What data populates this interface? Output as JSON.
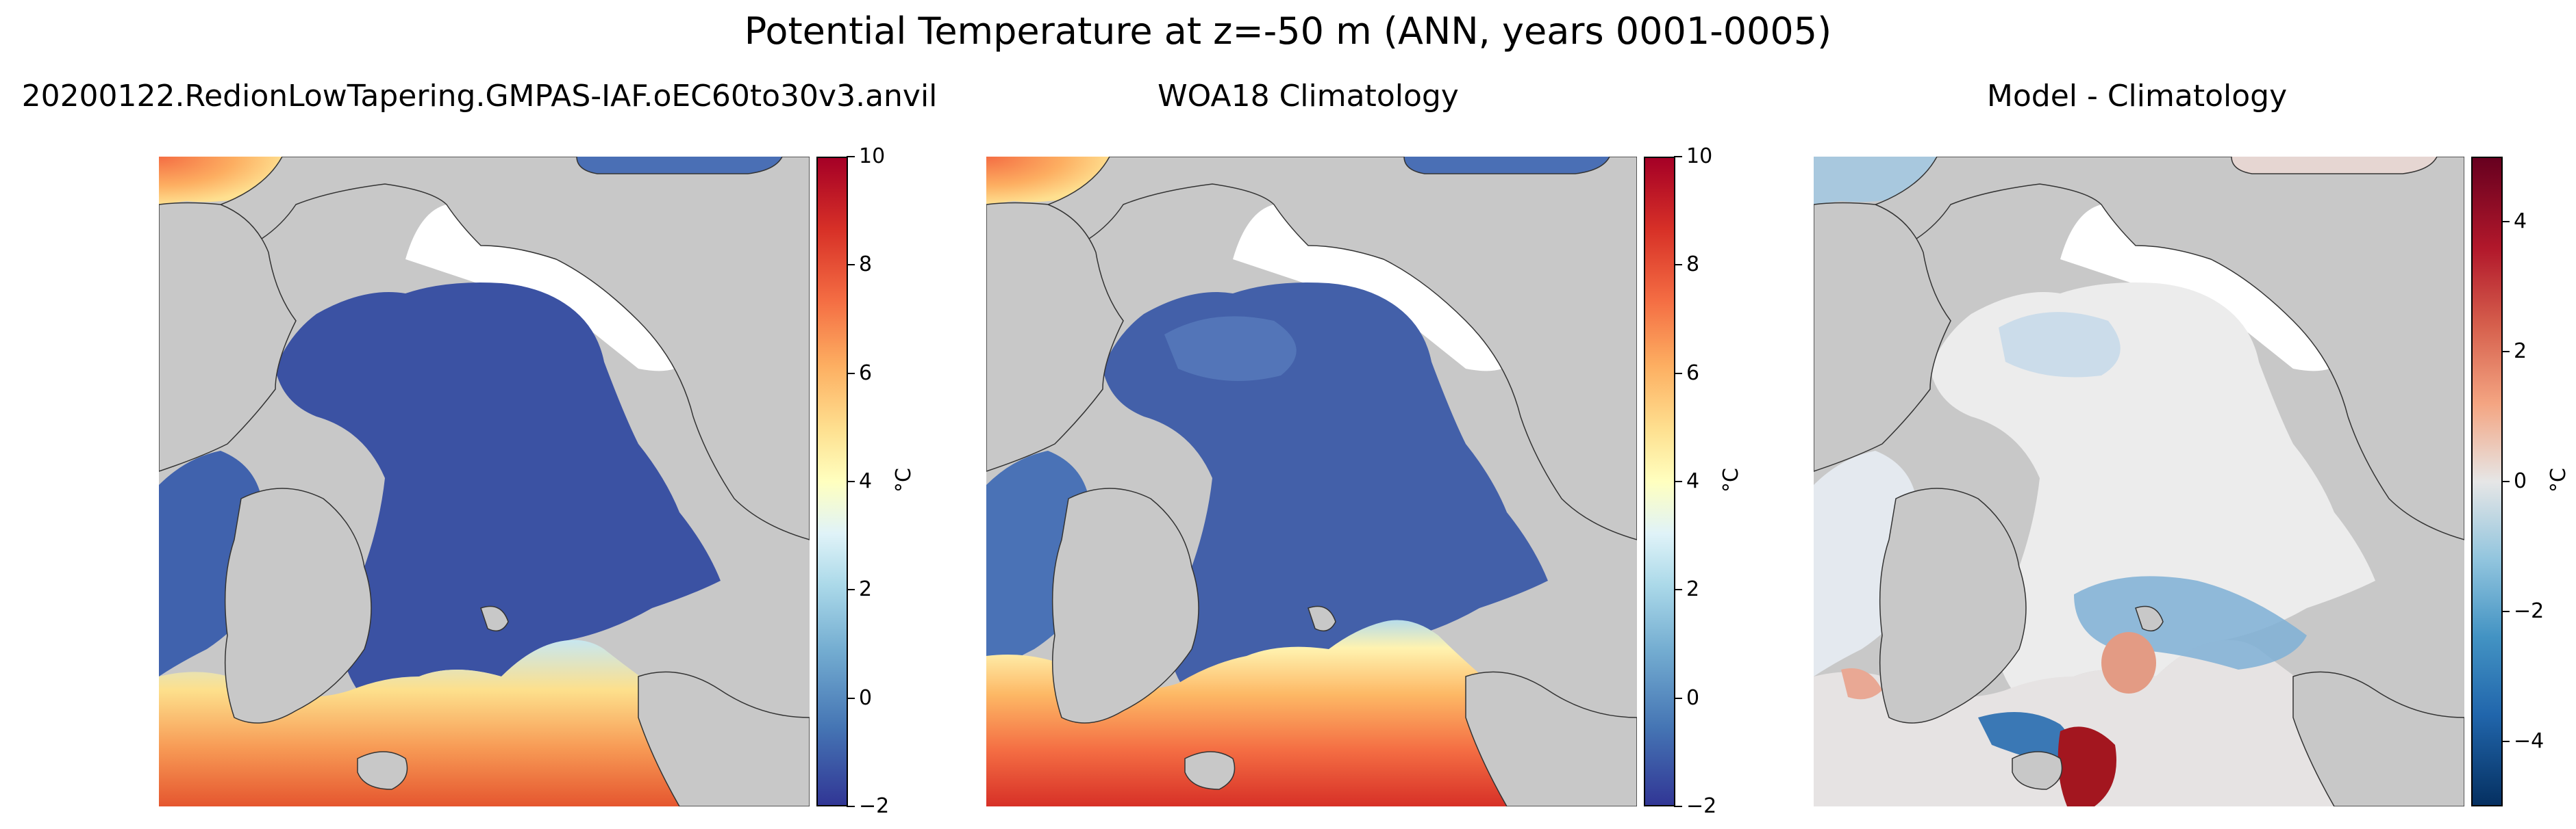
{
  "suptitle": "Potential Temperature at z=-50 m (ANN, years 0001-0005)",
  "panels": [
    {
      "title": "20200122.RedionLowTapering.GMPAS-IAF.oEC60to30v3.anvil",
      "colormap": "RdYlBu_r",
      "vmin": -2,
      "vmax": 10,
      "ticks": [
        "−2",
        "0",
        "2",
        "4",
        "6",
        "8",
        "10"
      ],
      "unit": "°C"
    },
    {
      "title": "WOA18 Climatology",
      "colormap": "RdYlBu_r",
      "vmin": -2,
      "vmax": 10,
      "ticks": [
        "−2",
        "0",
        "2",
        "4",
        "6",
        "8",
        "10"
      ],
      "unit": "°C"
    },
    {
      "title": "Model - Climatology",
      "colormap": "RdBu_r",
      "vmin": -5,
      "vmax": 5,
      "ticks": [
        "−4",
        "−2",
        "0",
        "2",
        "4"
      ],
      "unit": "°C"
    }
  ],
  "colors": {
    "land": "#c8c8c8",
    "cold": "#3a4fa0",
    "warm": "#f46d43",
    "diff_neutral": "#ececec",
    "diff_pos": "#d6604d",
    "diff_neg": "#2166ac"
  }
}
